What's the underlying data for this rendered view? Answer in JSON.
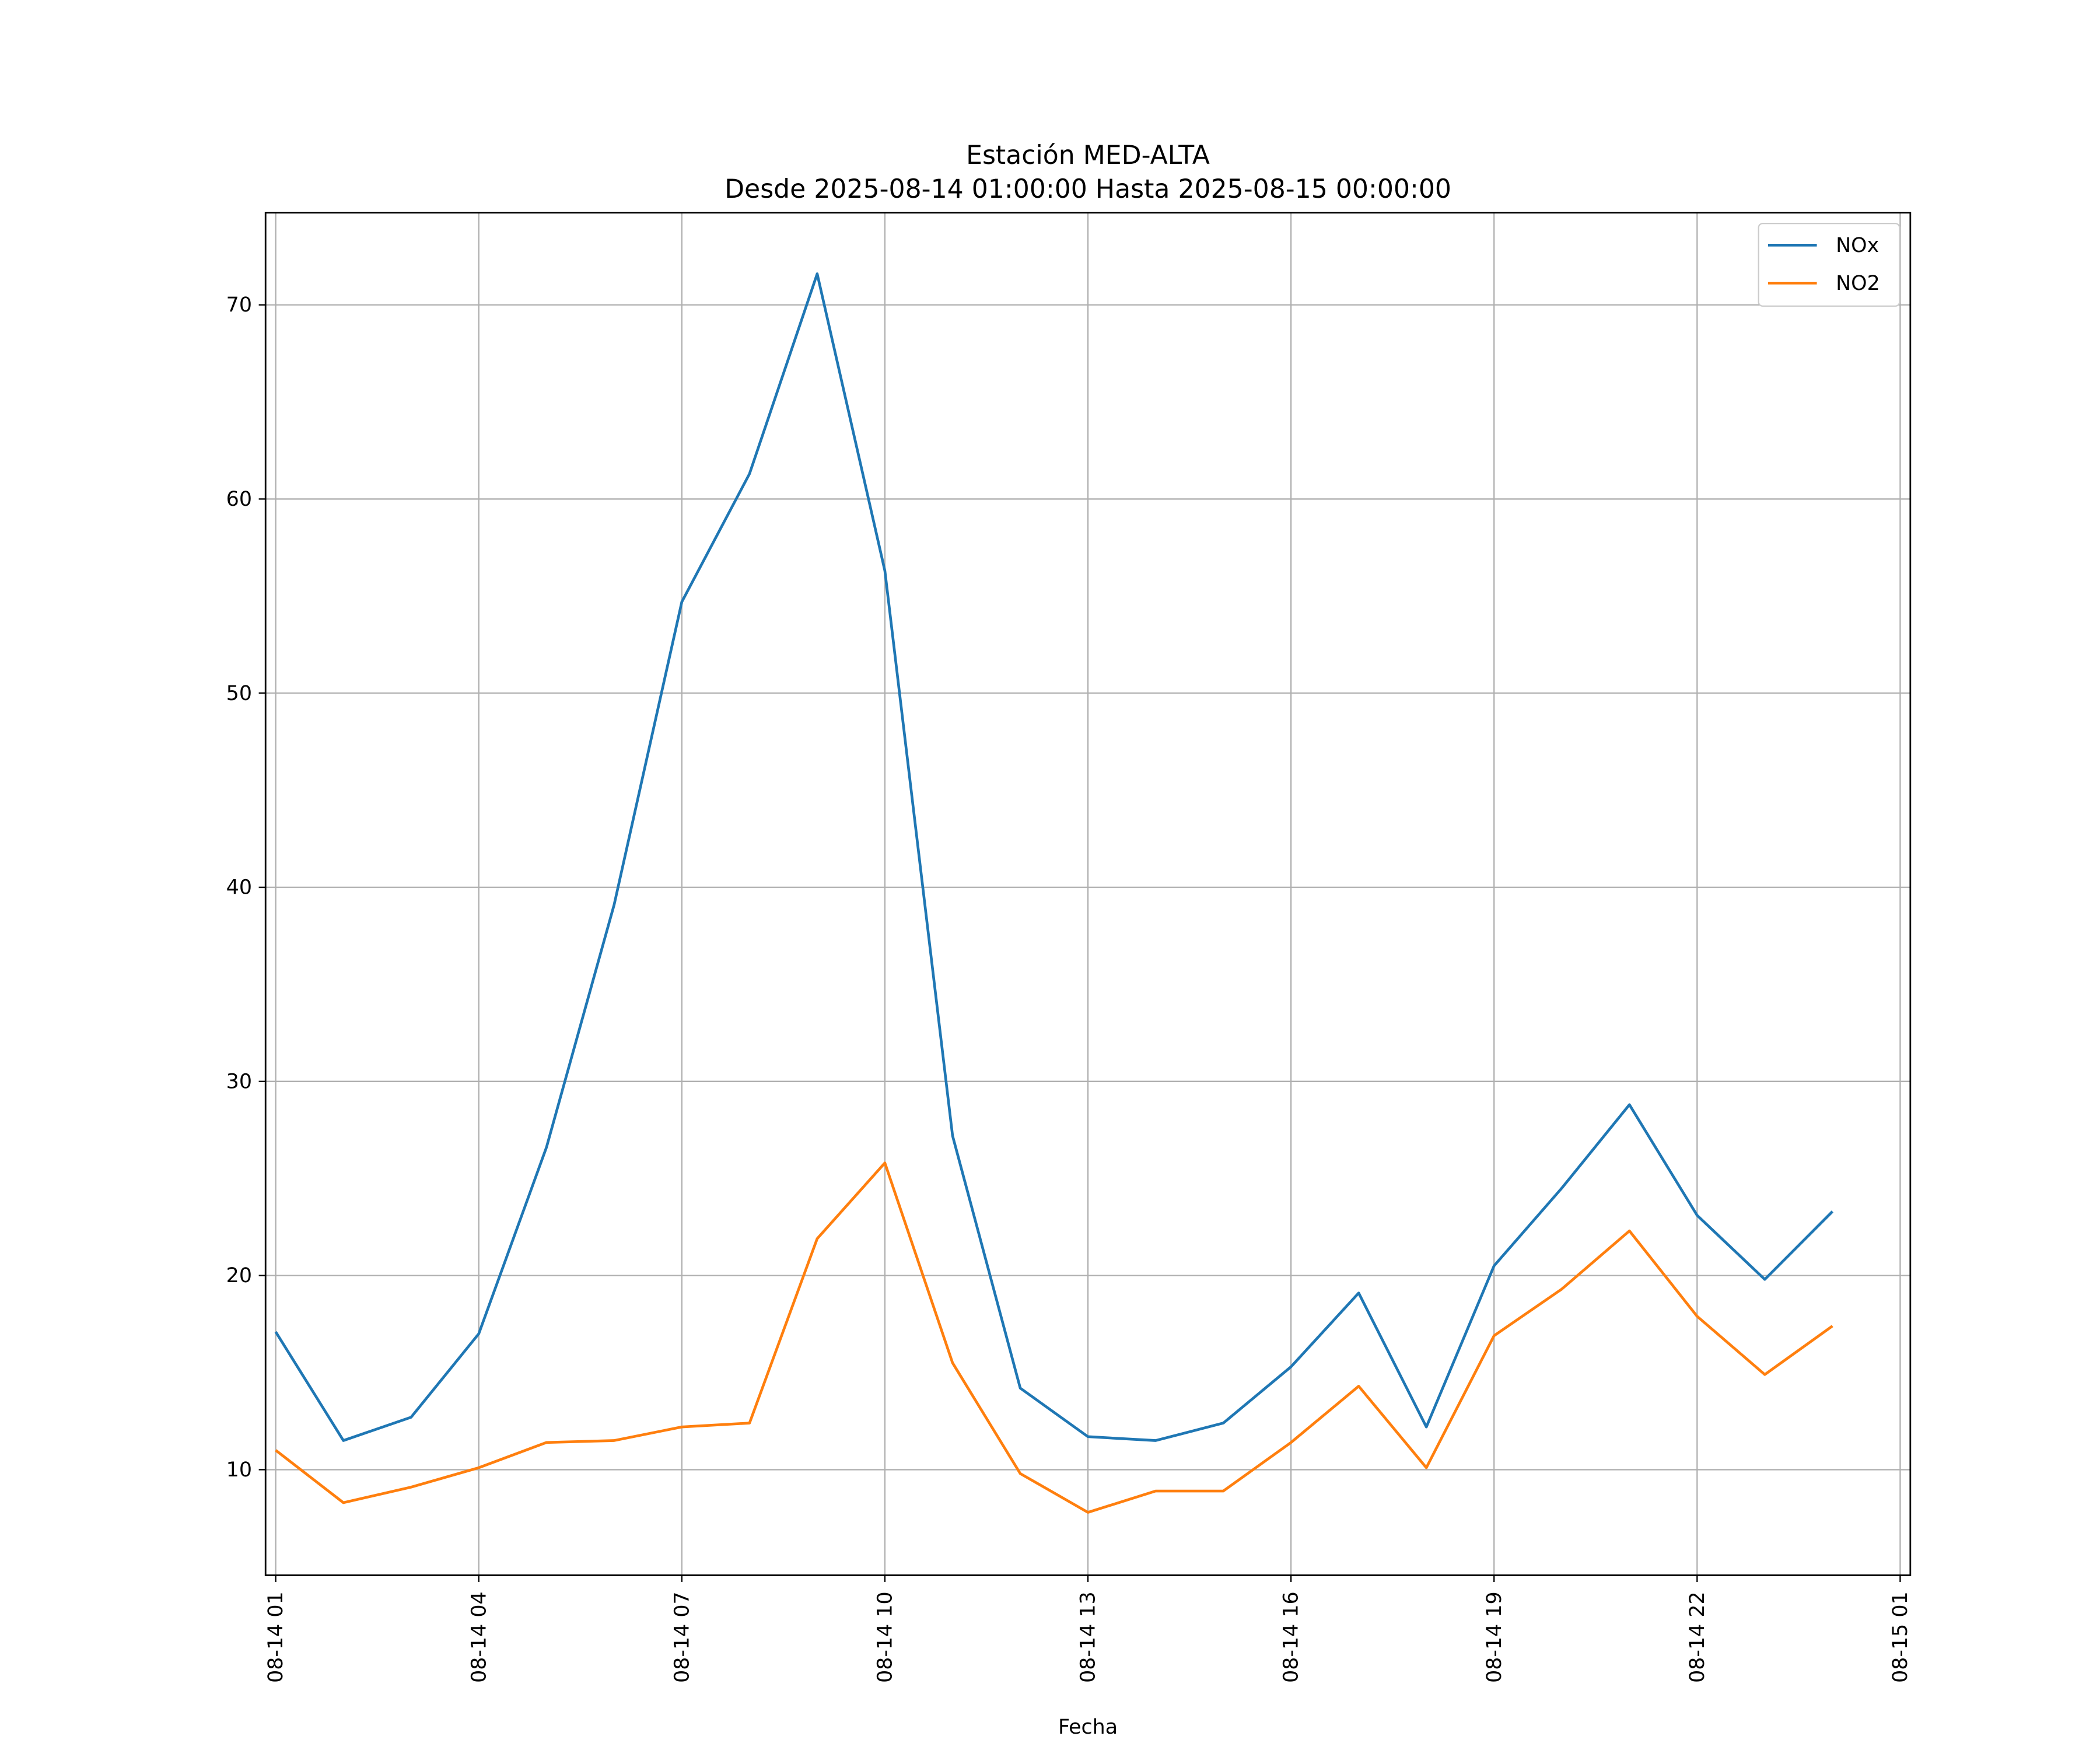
{
  "chart_data": {
    "type": "line",
    "title": "Estación MED-ALTA",
    "subtitle": "Desde 2025-08-14 01:00:00 Hasta 2025-08-15 00:00:00",
    "xlabel": "Fecha",
    "ylabel": "",
    "x_unit": "hour of 2025-08-14 (24 = 08-15 00)",
    "x": [
      1,
      2,
      3,
      4,
      5,
      6,
      7,
      8,
      9,
      10,
      11,
      12,
      13,
      14,
      15,
      16,
      17,
      18,
      19,
      20,
      21,
      22,
      23,
      24
    ],
    "series": [
      {
        "name": "NOx",
        "color": "#1f77b4",
        "values": [
          17.1,
          11.5,
          12.7,
          17.0,
          26.6,
          39.1,
          54.7,
          61.3,
          71.6,
          56.3,
          27.2,
          14.2,
          11.7,
          11.5,
          12.4,
          15.3,
          19.1,
          12.2,
          20.5,
          24.5,
          28.8,
          23.1,
          19.8,
          23.3
        ]
      },
      {
        "name": "NO2",
        "color": "#ff7f0e",
        "values": [
          11.0,
          8.3,
          9.1,
          10.1,
          11.4,
          11.5,
          12.2,
          12.4,
          21.9,
          25.8,
          15.5,
          9.8,
          7.8,
          8.9,
          8.9,
          11.4,
          14.3,
          10.1,
          16.9,
          19.3,
          22.3,
          17.9,
          14.9,
          17.4
        ]
      }
    ],
    "xlim": [
      0.85,
      25.15
    ],
    "ylim": [
      4.56,
      74.75
    ],
    "xticks": [
      {
        "value": 1,
        "label": "08-14 01"
      },
      {
        "value": 4,
        "label": "08-14 04"
      },
      {
        "value": 7,
        "label": "08-14 07"
      },
      {
        "value": 10,
        "label": "08-14 10"
      },
      {
        "value": 13,
        "label": "08-14 13"
      },
      {
        "value": 16,
        "label": "08-14 16"
      },
      {
        "value": 19,
        "label": "08-14 19"
      },
      {
        "value": 22,
        "label": "08-14 22"
      },
      {
        "value": 25,
        "label": "08-15 01"
      }
    ],
    "yticks": [
      {
        "value": 10,
        "label": "10"
      },
      {
        "value": 20,
        "label": "20"
      },
      {
        "value": 30,
        "label": "30"
      },
      {
        "value": 40,
        "label": "40"
      },
      {
        "value": 50,
        "label": "50"
      },
      {
        "value": 60,
        "label": "60"
      },
      {
        "value": 70,
        "label": "70"
      }
    ],
    "grid": true,
    "legend": "top-right"
  }
}
